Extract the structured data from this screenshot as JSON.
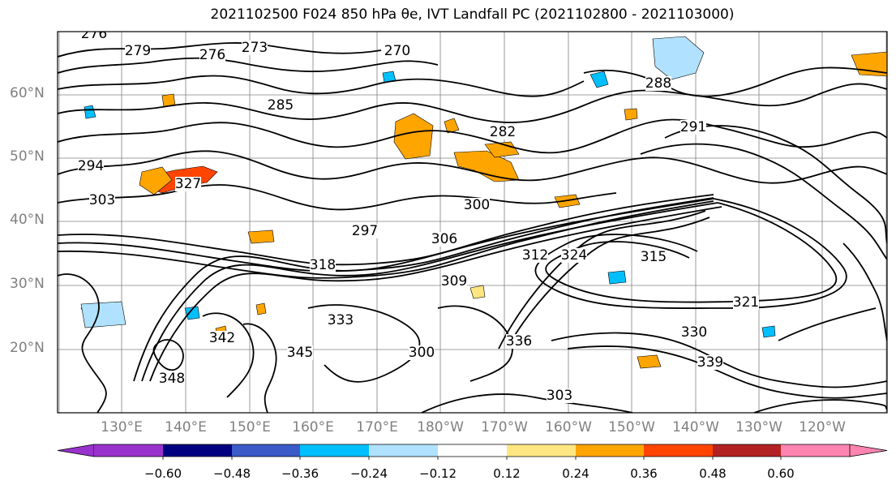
{
  "title": "2021102500 F024 850 hPa θe, IVT Landfall PC (2021102800 - 2021103000)",
  "latitude_labels": [
    "60°N",
    "50°N",
    "40°N",
    "30°N",
    "20°N"
  ],
  "longitude_labels": [
    "130°E",
    "140°E",
    "150°E",
    "160°E",
    "170°E",
    "180°W",
    "170°W",
    "160°W",
    "150°W",
    "140°W",
    "130°W",
    "120°W"
  ],
  "colorbar": {
    "colors": [
      "#9932CC",
      "#000080",
      "#3A5BC8",
      "#00BFFF",
      "#B0E2FF",
      "#FFFFFF",
      "#FFE680",
      "#FFA500",
      "#FF4500",
      "#B22222",
      "#FF85B0"
    ],
    "tick_labels": [
      "−0.60",
      "−0.48",
      "−0.36",
      "−0.24",
      "−0.12",
      "0.12",
      "0.24",
      "0.36",
      "0.48",
      "0.60"
    ]
  },
  "contour_labels": [
    "276",
    "279",
    "276",
    "273",
    "270",
    "285",
    "282",
    "291",
    "288",
    "294",
    "297",
    "300",
    "303",
    "306",
    "309",
    "312",
    "315",
    "318",
    "321",
    "324",
    "327",
    "330",
    "333",
    "336",
    "339",
    "342",
    "345",
    "348",
    "300",
    "303"
  ]
}
